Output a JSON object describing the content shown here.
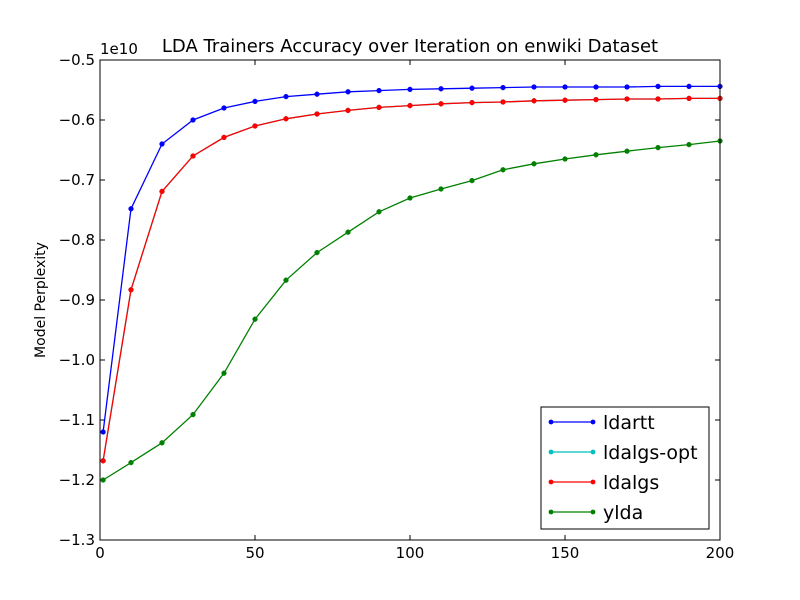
{
  "chart_data": {
    "type": "line",
    "title": "LDA Trainers Accuracy over Iteration on enwiki Dataset",
    "xlabel": "",
    "ylabel": "Model Perplexity",
    "y_offset_label": "1e10",
    "xlim": [
      0,
      200
    ],
    "ylim": [
      -1.3,
      -0.5
    ],
    "x_ticks": [
      0,
      50,
      100,
      150,
      200
    ],
    "x_tick_labels": [
      "0",
      "50",
      "100",
      "150",
      "200"
    ],
    "y_ticks": [
      -1.3,
      -1.2,
      -1.1,
      -1.0,
      -0.9,
      -0.8,
      -0.7,
      -0.6,
      -0.5
    ],
    "y_tick_labels": [
      "−1.3",
      "−1.2",
      "−1.1",
      "−1.0",
      "−0.9",
      "−0.8",
      "−0.7",
      "−0.6",
      "−0.5"
    ],
    "grid": false,
    "legend_position": "lower-right",
    "series": [
      {
        "name": "ldartt",
        "color": "#0000ff",
        "x": [
          1,
          10,
          20,
          30,
          40,
          50,
          60,
          70,
          80,
          90,
          100,
          110,
          120,
          130,
          140,
          150,
          160,
          170,
          180,
          190,
          200
        ],
        "y": [
          -1.12,
          -0.748,
          -0.64,
          -0.6,
          -0.58,
          -0.569,
          -0.561,
          -0.557,
          -0.553,
          -0.551,
          -0.549,
          -0.548,
          -0.547,
          -0.546,
          -0.545,
          -0.545,
          -0.545,
          -0.545,
          -0.544,
          -0.544,
          -0.544
        ]
      },
      {
        "name": "ldalgs-opt",
        "color": "#00bfbf",
        "x": [
          1,
          10,
          20,
          30,
          40,
          50,
          60,
          70,
          80,
          90,
          100,
          110,
          120,
          130,
          140,
          150,
          160,
          170,
          180,
          190,
          200
        ],
        "y": [
          -1.168,
          -0.883,
          -0.719,
          -0.66,
          -0.629,
          -0.61,
          -0.598,
          -0.59,
          -0.584,
          -0.579,
          -0.576,
          -0.573,
          -0.571,
          -0.57,
          -0.568,
          -0.567,
          -0.566,
          -0.565,
          -0.565,
          -0.564,
          -0.564
        ]
      },
      {
        "name": "ldalgs",
        "color": "#ff0000",
        "x": [
          1,
          10,
          20,
          30,
          40,
          50,
          60,
          70,
          80,
          90,
          100,
          110,
          120,
          130,
          140,
          150,
          160,
          170,
          180,
          190,
          200
        ],
        "y": [
          -1.168,
          -0.883,
          -0.719,
          -0.66,
          -0.629,
          -0.61,
          -0.598,
          -0.59,
          -0.584,
          -0.579,
          -0.576,
          -0.573,
          -0.571,
          -0.57,
          -0.568,
          -0.567,
          -0.566,
          -0.565,
          -0.565,
          -0.564,
          -0.564
        ]
      },
      {
        "name": "ylda",
        "color": "#008000",
        "x": [
          1,
          10,
          20,
          30,
          40,
          50,
          60,
          70,
          80,
          90,
          100,
          110,
          120,
          130,
          140,
          150,
          160,
          170,
          180,
          190,
          200
        ],
        "y": [
          -1.2,
          -1.171,
          -1.138,
          -1.091,
          -1.022,
          -0.932,
          -0.867,
          -0.821,
          -0.787,
          -0.753,
          -0.73,
          -0.715,
          -0.701,
          -0.683,
          -0.673,
          -0.665,
          -0.658,
          -0.652,
          -0.646,
          -0.641,
          -0.635
        ]
      }
    ]
  }
}
